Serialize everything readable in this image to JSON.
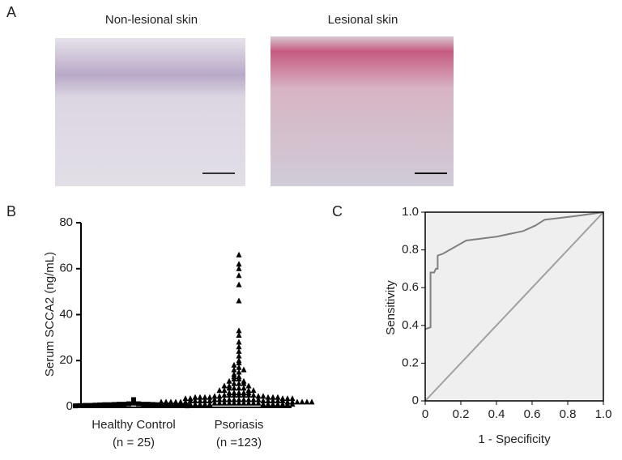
{
  "figure": {
    "panel_labels": [
      "A",
      "B",
      "C"
    ],
    "image_titles": [
      "Non-lesional skin",
      "Lesional skin"
    ]
  },
  "chart_data": [
    {
      "type": "dot",
      "ylabel": "Serum SCCA2 (ng/mL)",
      "categories": [
        [
          "Healthy Control",
          "(n = 25)"
        ],
        [
          "Psoriasis",
          "(n =123)"
        ]
      ],
      "ylim": [
        0,
        80
      ],
      "yticks": [
        0,
        20,
        40,
        60,
        80
      ],
      "groups": [
        {
          "marker": "square",
          "color": "#000000",
          "values": [
            3,
            1.5,
            1.2,
            1.2,
            1,
            1,
            1,
            1,
            0.9,
            0.9,
            0.8,
            0.8,
            0.8,
            0.7,
            0.7,
            0.7,
            0.6,
            0.6,
            0.5,
            0.5,
            0.5,
            0.4,
            0.4,
            0.3,
            0.3
          ]
        },
        {
          "marker": "triangle",
          "color": "#000000",
          "values": [
            66,
            62,
            60,
            57,
            53,
            46,
            33,
            31,
            28,
            26,
            24,
            22,
            20,
            19,
            18,
            17,
            16,
            16,
            15,
            14,
            13,
            13,
            12,
            12,
            11,
            11,
            10,
            10,
            10,
            9,
            9,
            9,
            8,
            8,
            8,
            8,
            7,
            7,
            7,
            7,
            6,
            6,
            6,
            6,
            6,
            5,
            5,
            5,
            5,
            5,
            5,
            5,
            4.5,
            4.5,
            4.5,
            4.5,
            4,
            4,
            4,
            4,
            4,
            4,
            4,
            3.5,
            3.5,
            3.5,
            3.5,
            3.5,
            3,
            3,
            3,
            3,
            3,
            3,
            3,
            3,
            3,
            3,
            2.5,
            2.5,
            2.5,
            2.5,
            2.5,
            2.5,
            2.5,
            2.5,
            2.5,
            2.5,
            2,
            2,
            2,
            2,
            2,
            2,
            2,
            2,
            2,
            2,
            2,
            2,
            1.5,
            1.5,
            1.5,
            1.5,
            1.5,
            1.5,
            1.5,
            1.5,
            1.5,
            1.5,
            1,
            1,
            1,
            1,
            1,
            1,
            1,
            1,
            1,
            1,
            1,
            1,
            1
          ]
        }
      ]
    },
    {
      "type": "line",
      "xlabel": "1 - Specificity",
      "ylabel": "Sensitivity",
      "xlim": [
        0,
        1
      ],
      "ylim": [
        0,
        1
      ],
      "xticks": [
        0,
        0.2,
        0.4,
        0.6,
        0.8,
        {
          "value": 1,
          "label": "1.0"
        }
      ],
      "yticks": [
        0,
        0.2,
        0.4,
        0.6,
        0.8,
        {
          "value": 1,
          "label": "1.0"
        }
      ],
      "background": "#efefef",
      "series": [
        {
          "color": "#808080",
          "x": [
            0,
            0.03,
            0.03,
            0.05,
            0.06,
            0.07,
            0.07,
            0.1,
            0.23,
            0.4,
            0.55,
            0.62,
            0.67,
            0.85,
            1
          ],
          "y": [
            0.38,
            0.39,
            0.68,
            0.68,
            0.7,
            0.7,
            0.77,
            0.78,
            0.85,
            0.87,
            0.9,
            0.93,
            0.96,
            0.98,
            1
          ]
        },
        {
          "color": "#a0a0a0",
          "x": [
            0,
            1
          ],
          "y": [
            0,
            1
          ]
        }
      ]
    }
  ]
}
